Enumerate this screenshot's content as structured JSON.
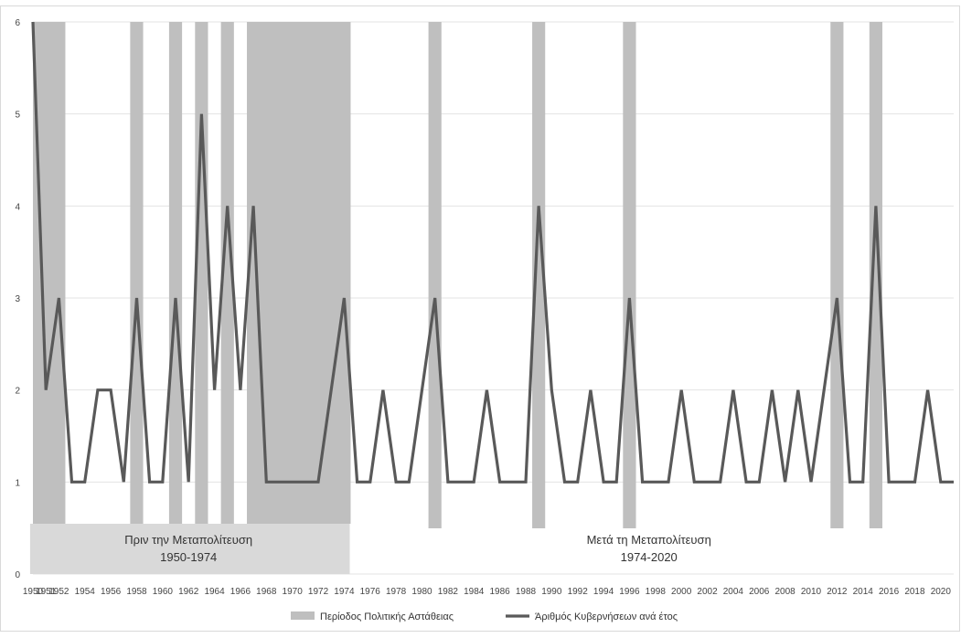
{
  "chart_data": {
    "type": "line",
    "title": "",
    "xlabel": "",
    "ylabel": "",
    "ylim": [
      0,
      6
    ],
    "yticks": [
      0,
      1,
      2,
      3,
      4,
      5,
      6
    ],
    "xlim": [
      1950,
      2021
    ],
    "xticks": [
      1950,
      1951,
      1952,
      1954,
      1956,
      1958,
      1960,
      1962,
      1964,
      1966,
      1968,
      1970,
      1972,
      1974,
      1976,
      1978,
      1980,
      1982,
      1984,
      1986,
      1988,
      1990,
      1992,
      1994,
      1996,
      1998,
      2000,
      2002,
      2004,
      2006,
      2008,
      2010,
      2012,
      2014,
      2016,
      2018,
      2020
    ],
    "grid": true,
    "legend_position": "bottom",
    "series": [
      {
        "name": "Άριθμός Κυβερνήσεων ανά έτος",
        "color": "#595959",
        "x": [
          1950,
          1951,
          1952,
          1953,
          1954,
          1955,
          1956,
          1957,
          1958,
          1959,
          1960,
          1961,
          1962,
          1963,
          1964,
          1965,
          1966,
          1967,
          1968,
          1969,
          1970,
          1971,
          1972,
          1973,
          1974,
          1975,
          1976,
          1977,
          1978,
          1979,
          1980,
          1981,
          1982,
          1983,
          1984,
          1985,
          1986,
          1987,
          1988,
          1989,
          1990,
          1991,
          1992,
          1993,
          1994,
          1995,
          1996,
          1997,
          1998,
          1999,
          2000,
          2001,
          2002,
          2003,
          2004,
          2005,
          2006,
          2007,
          2008,
          2009,
          2010,
          2011,
          2012,
          2013,
          2014,
          2015,
          2016,
          2017,
          2018,
          2019,
          2020,
          2021
        ],
        "values": [
          6,
          2,
          3,
          1,
          1,
          2,
          2,
          1,
          3,
          1,
          1,
          3,
          1,
          5,
          2,
          4,
          2,
          4,
          1,
          1,
          1,
          1,
          1,
          2,
          3,
          1,
          1,
          2,
          1,
          1,
          2,
          3,
          1,
          1,
          1,
          2,
          1,
          1,
          1,
          4,
          2,
          1,
          1,
          2,
          1,
          1,
          3,
          1,
          1,
          1,
          2,
          1,
          1,
          1,
          2,
          1,
          1,
          2,
          1,
          2,
          1,
          2,
          3,
          1,
          1,
          4,
          1,
          1,
          1,
          2,
          1,
          1
        ]
      }
    ],
    "instability_periods": {
      "name": "Περίοδος Πολιτικής Αστάθειας",
      "color": "#bfbfbf",
      "ranges": [
        [
          1950,
          1952
        ],
        [
          1958,
          1958
        ],
        [
          1961,
          1961
        ],
        [
          1963,
          1963
        ],
        [
          1965,
          1965
        ],
        [
          1967,
          1974
        ],
        [
          1981,
          1981
        ],
        [
          1989,
          1989
        ],
        [
          1996,
          1996
        ],
        [
          2012,
          2012
        ],
        [
          2015,
          2015
        ]
      ]
    },
    "eras": [
      {
        "label": "Πριν την Μεταπολίτευση",
        "years": "1950-1974",
        "from": 1950,
        "to": 1974,
        "shaded": true
      },
      {
        "label": "Μετά τη Μεταπολίτευση",
        "years": "1974-2020",
        "from": 1974,
        "to": 2021,
        "shaded": false
      }
    ],
    "legend": [
      {
        "label": "Περίοδος Πολιτικής Αστάθειας",
        "kind": "band",
        "color": "#bfbfbf"
      },
      {
        "label": "Άριθμός Κυβερνήσεων ανά έτος",
        "kind": "line",
        "color": "#595959"
      }
    ]
  }
}
